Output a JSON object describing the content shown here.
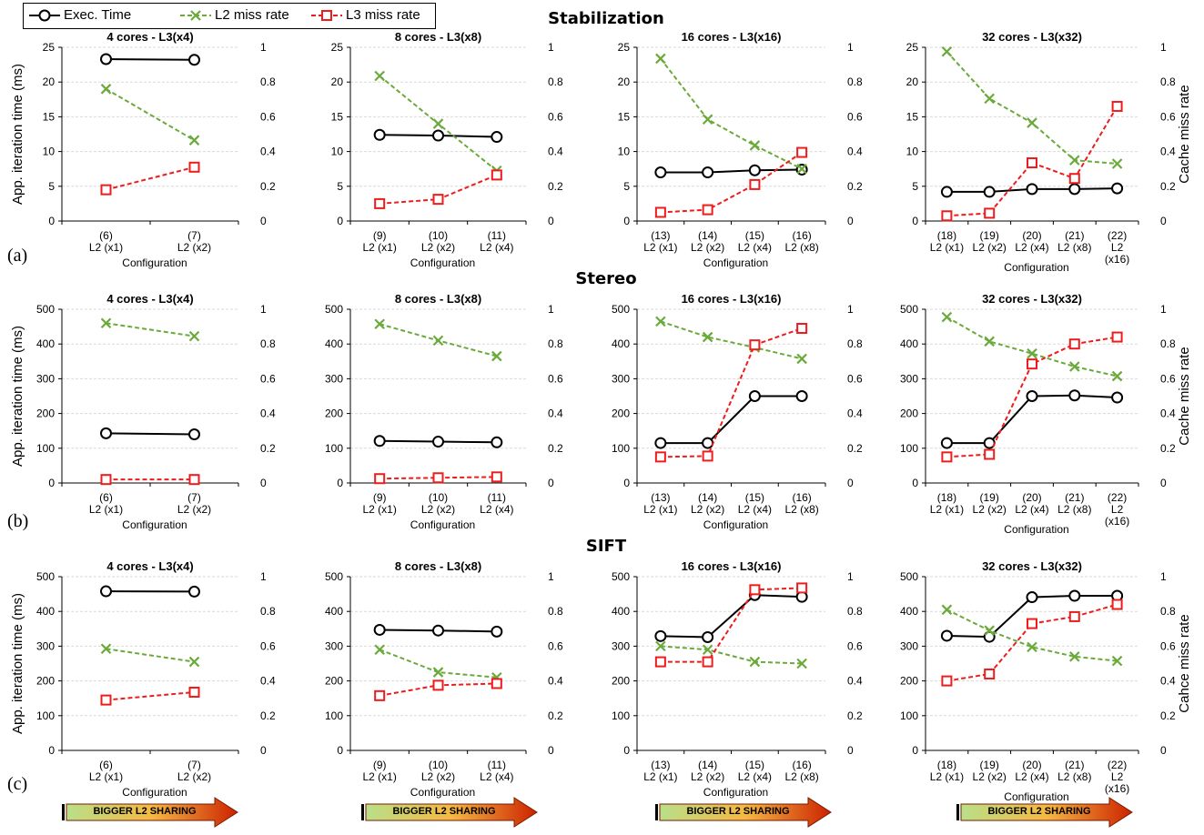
{
  "legend": {
    "exec_label": "Exec. Time",
    "l2_label": "L2 miss rate",
    "l3_label": "L3 miss rate"
  },
  "colors": {
    "exec": "#000000",
    "l2": "#6aaa3a",
    "l3": "#ee1c1c",
    "grid": "#d9d9d9",
    "arrow_start": "#b8e08a",
    "arrow_mid": "#f5b942",
    "arrow_end": "#cc2200"
  },
  "sections": [
    {
      "title": "Stabilization",
      "letter": "(a)"
    },
    {
      "title": "Stereo",
      "letter": "(b)"
    },
    {
      "title": "SIFT",
      "letter": "(c)"
    }
  ],
  "arrow_label": "BIGGER L2 SHARING",
  "chart_data": [
    {
      "type": "line",
      "section": "Stabilization",
      "title": "4 cores - L3(x4)",
      "xlabel": "Configuration",
      "ylabel": "App. iteration time (ms)",
      "y2label": "",
      "ylim": [
        0,
        25
      ],
      "y2lim": [
        0,
        1
      ],
      "yticks": [
        "0",
        "5",
        "10",
        "15",
        "20",
        "25"
      ],
      "y2ticks": [
        "0",
        "0.2",
        "0.4",
        "0.6",
        "0.8",
        "1"
      ],
      "grid": true,
      "categories": [
        [
          "(6)",
          "L2 (x1)"
        ],
        [
          "(7)",
          "L2 (x2)"
        ]
      ],
      "series": [
        {
          "name": "Exec. Time",
          "axis": "left",
          "values": [
            23.3,
            23.2
          ]
        },
        {
          "name": "L2 miss rate",
          "axis": "right",
          "values": [
            0.76,
            0.465
          ]
        },
        {
          "name": "L3 miss rate",
          "axis": "right",
          "values": [
            0.18,
            0.31
          ]
        }
      ]
    },
    {
      "type": "line",
      "section": "Stabilization",
      "title": "8 cores - L3(x8)",
      "xlabel": "Configuration",
      "ylabel": "",
      "y2label": "",
      "ylim": [
        0,
        25
      ],
      "y2lim": [
        0,
        1
      ],
      "yticks": [
        "0",
        "5",
        "10",
        "15",
        "20",
        "25"
      ],
      "y2ticks": [
        "0",
        "0.2",
        "0.4",
        "0.6",
        "0.8",
        "1"
      ],
      "grid": true,
      "categories": [
        [
          "(9)",
          "L2 (x1)"
        ],
        [
          "(10)",
          "L2 (x2)"
        ],
        [
          "(11)",
          "L2 (x4)"
        ]
      ],
      "series": [
        {
          "name": "Exec. Time",
          "axis": "left",
          "values": [
            12.4,
            12.3,
            12.1
          ]
        },
        {
          "name": "L2 miss rate",
          "axis": "right",
          "values": [
            0.835,
            0.56,
            0.29
          ]
        },
        {
          "name": "L3 miss rate",
          "axis": "right",
          "values": [
            0.1,
            0.125,
            0.265
          ]
        }
      ]
    },
    {
      "type": "line",
      "section": "Stabilization",
      "title": "16 cores - L3(x16)",
      "xlabel": "Configuration",
      "ylabel": "",
      "y2label": "",
      "ylim": [
        0,
        25
      ],
      "y2lim": [
        0,
        1
      ],
      "yticks": [
        "0",
        "5",
        "10",
        "15",
        "20",
        "25"
      ],
      "y2ticks": [
        "0",
        "0.2",
        "0.4",
        "0.6",
        "0.8",
        "1"
      ],
      "grid": true,
      "categories": [
        [
          "(13)",
          "L2 (x1)"
        ],
        [
          "(14)",
          "L2 (x2)"
        ],
        [
          "(15)",
          "L2 (x4)"
        ],
        [
          "(16)",
          "L2 (x8)"
        ]
      ],
      "series": [
        {
          "name": "Exec. Time",
          "axis": "left",
          "values": [
            7.0,
            7.0,
            7.3,
            7.4
          ]
        },
        {
          "name": "L2 miss rate",
          "axis": "right",
          "values": [
            0.935,
            0.585,
            0.435,
            0.3
          ]
        },
        {
          "name": "L3 miss rate",
          "axis": "right",
          "values": [
            0.05,
            0.065,
            0.21,
            0.395
          ]
        }
      ]
    },
    {
      "type": "line",
      "section": "Stabilization",
      "title": "32 cores - L3(x32)",
      "xlabel": "Configuration",
      "ylabel": "",
      "y2label": "Cache miss rate",
      "ylim": [
        0,
        25
      ],
      "y2lim": [
        0,
        1
      ],
      "yticks": [
        "0",
        "5",
        "10",
        "15",
        "20",
        "25"
      ],
      "y2ticks": [
        "0",
        "0.2",
        "0.4",
        "0.6",
        "0.8",
        "1"
      ],
      "grid": true,
      "categories": [
        [
          "(18)",
          "L2 (x1)"
        ],
        [
          "(19)",
          "L2 (x2)"
        ],
        [
          "(20)",
          "L2 (x4)"
        ],
        [
          "(21)",
          "L2 (x8)"
        ],
        [
          "(22)",
          "L2",
          "(x16)"
        ]
      ],
      "series": [
        {
          "name": "Exec. Time",
          "axis": "left",
          "values": [
            4.2,
            4.2,
            4.6,
            4.6,
            4.7
          ]
        },
        {
          "name": "L2 miss rate",
          "axis": "right",
          "values": [
            0.975,
            0.705,
            0.565,
            0.35,
            0.33
          ]
        },
        {
          "name": "L3 miss rate",
          "axis": "right",
          "values": [
            0.03,
            0.045,
            0.335,
            0.245,
            0.66
          ]
        }
      ]
    },
    {
      "type": "line",
      "section": "Stereo",
      "title": "4 cores - L3(x4)",
      "xlabel": "Configuration",
      "ylabel": "App. iteration time (ms)",
      "y2label": "",
      "ylim": [
        0,
        500
      ],
      "y2lim": [
        0,
        1
      ],
      "yticks": [
        "0",
        "100",
        "200",
        "300",
        "400",
        "500"
      ],
      "y2ticks": [
        "0",
        "0.2",
        "0.4",
        "0.6",
        "0.8",
        "1"
      ],
      "grid": true,
      "categories": [
        [
          "(6)",
          "L2 (x1)"
        ],
        [
          "(7)",
          "L2 (x2)"
        ]
      ],
      "series": [
        {
          "name": "Exec. Time",
          "axis": "left",
          "values": [
            143,
            140
          ]
        },
        {
          "name": "L2 miss rate",
          "axis": "right",
          "values": [
            0.92,
            0.845
          ]
        },
        {
          "name": "L3 miss rate",
          "axis": "right",
          "values": [
            0.02,
            0.02
          ]
        }
      ]
    },
    {
      "type": "line",
      "section": "Stereo",
      "title": "8 cores - L3(x8)",
      "xlabel": "Configuration",
      "ylabel": "",
      "y2label": "",
      "ylim": [
        0,
        500
      ],
      "y2lim": [
        0,
        1
      ],
      "yticks": [
        "0",
        "100",
        "200",
        "300",
        "400",
        "500"
      ],
      "y2ticks": [
        "0",
        "0.2",
        "0.4",
        "0.6",
        "0.8",
        "1"
      ],
      "grid": true,
      "categories": [
        [
          "(9)",
          "L2 (x1)"
        ],
        [
          "(10)",
          "L2 (x2)"
        ],
        [
          "(11)",
          "L2 (x4)"
        ]
      ],
      "series": [
        {
          "name": "Exec. Time",
          "axis": "left",
          "values": [
            121,
            119,
            117
          ]
        },
        {
          "name": "L2 miss rate",
          "axis": "right",
          "values": [
            0.915,
            0.82,
            0.73
          ]
        },
        {
          "name": "L3 miss rate",
          "axis": "right",
          "values": [
            0.025,
            0.03,
            0.035
          ]
        }
      ]
    },
    {
      "type": "line",
      "section": "Stereo",
      "title": "16 cores - L3(x16)",
      "xlabel": "Configuration",
      "ylabel": "",
      "y2label": "",
      "ylim": [
        0,
        500
      ],
      "y2lim": [
        0,
        1
      ],
      "yticks": [
        "0",
        "100",
        "200",
        "300",
        "400",
        "500"
      ],
      "y2ticks": [
        "0",
        "0.2",
        "0.4",
        "0.6",
        "0.8",
        "1"
      ],
      "grid": true,
      "categories": [
        [
          "(13)",
          "L2 (x1)"
        ],
        [
          "(14)",
          "L2 (x2)"
        ],
        [
          "(15)",
          "L2 (x4)"
        ],
        [
          "(16)",
          "L2 (x8)"
        ]
      ],
      "series": [
        {
          "name": "Exec. Time",
          "axis": "left",
          "values": [
            115,
            115,
            250,
            250
          ]
        },
        {
          "name": "L2 miss rate",
          "axis": "right",
          "values": [
            0.93,
            0.84,
            0.78,
            0.715
          ]
        },
        {
          "name": "L3 miss rate",
          "axis": "right",
          "values": [
            0.15,
            0.155,
            0.795,
            0.89
          ]
        }
      ]
    },
    {
      "type": "line",
      "section": "Stereo",
      "title": "32 cores - L3(x32)",
      "xlabel": "Configuration",
      "ylabel": "",
      "y2label": "Cache miss rate",
      "ylim": [
        0,
        500
      ],
      "y2lim": [
        0,
        1
      ],
      "yticks": [
        "0",
        "100",
        "200",
        "300",
        "400",
        "500"
      ],
      "y2ticks": [
        "0",
        "0.2",
        "0.4",
        "0.6",
        "0.8",
        "1"
      ],
      "grid": true,
      "categories": [
        [
          "(18)",
          "L2 (x1)"
        ],
        [
          "(19)",
          "L2 (x2)"
        ],
        [
          "(20)",
          "L2 (x4)"
        ],
        [
          "(21)",
          "L2 (x8)"
        ],
        [
          "(22)",
          "L2",
          "(x16)"
        ]
      ],
      "series": [
        {
          "name": "Exec. Time",
          "axis": "left",
          "values": [
            115,
            115,
            250,
            252,
            246
          ]
        },
        {
          "name": "L2 miss rate",
          "axis": "right",
          "values": [
            0.955,
            0.815,
            0.745,
            0.67,
            0.615
          ]
        },
        {
          "name": "L3 miss rate",
          "axis": "right",
          "values": [
            0.15,
            0.165,
            0.685,
            0.8,
            0.84
          ]
        }
      ]
    },
    {
      "type": "line",
      "section": "SIFT",
      "title": "4 cores - L3(x4)",
      "xlabel": "Configuration",
      "ylabel": "App. iteration time (ms)",
      "y2label": "",
      "ylim": [
        0,
        500
      ],
      "y2lim": [
        0,
        1
      ],
      "yticks": [
        "0",
        "100",
        "200",
        "300",
        "400",
        "500"
      ],
      "y2ticks": [
        "0",
        "0.2",
        "0.4",
        "0.6",
        "0.8",
        "1"
      ],
      "grid": true,
      "categories": [
        [
          "(6)",
          "L2 (x1)"
        ],
        [
          "(7)",
          "L2 (x2)"
        ]
      ],
      "series": [
        {
          "name": "Exec. Time",
          "axis": "left",
          "values": [
            458,
            457
          ]
        },
        {
          "name": "L2 miss rate",
          "axis": "right",
          "values": [
            0.585,
            0.51
          ]
        },
        {
          "name": "L3 miss rate",
          "axis": "right",
          "values": [
            0.29,
            0.335
          ]
        }
      ]
    },
    {
      "type": "line",
      "section": "SIFT",
      "title": "8 cores - L3(x8)",
      "xlabel": "Configuration",
      "ylabel": "",
      "y2label": "",
      "ylim": [
        0,
        500
      ],
      "y2lim": [
        0,
        1
      ],
      "yticks": [
        "0",
        "100",
        "200",
        "300",
        "400",
        "500"
      ],
      "y2ticks": [
        "0",
        "0.2",
        "0.4",
        "0.6",
        "0.8",
        "1"
      ],
      "grid": true,
      "categories": [
        [
          "(9)",
          "L2 (x1)"
        ],
        [
          "(10)",
          "L2 (x2)"
        ],
        [
          "(11)",
          "L2 (x4)"
        ]
      ],
      "series": [
        {
          "name": "Exec. Time",
          "axis": "left",
          "values": [
            347,
            345,
            342
          ]
        },
        {
          "name": "L2 miss rate",
          "axis": "right",
          "values": [
            0.58,
            0.45,
            0.42
          ]
        },
        {
          "name": "L3 miss rate",
          "axis": "right",
          "values": [
            0.315,
            0.375,
            0.385
          ]
        }
      ]
    },
    {
      "type": "line",
      "section": "SIFT",
      "title": "16 cores - L3(x16)",
      "xlabel": "Configuration",
      "ylabel": "",
      "y2label": "",
      "ylim": [
        0,
        500
      ],
      "y2lim": [
        0,
        1
      ],
      "yticks": [
        "0",
        "100",
        "200",
        "300",
        "400",
        "500"
      ],
      "y2ticks": [
        "0",
        "0.2",
        "0.4",
        "0.6",
        "0.8",
        "1"
      ],
      "grid": true,
      "categories": [
        [
          "(13)",
          "L2 (x1)"
        ],
        [
          "(14)",
          "L2 (x2)"
        ],
        [
          "(15)",
          "L2 (x4)"
        ],
        [
          "(16)",
          "L2 (x8)"
        ]
      ],
      "series": [
        {
          "name": "Exec. Time",
          "axis": "left",
          "values": [
            329,
            326,
            447,
            442
          ]
        },
        {
          "name": "L2 miss rate",
          "axis": "right",
          "values": [
            0.6,
            0.58,
            0.51,
            0.5
          ]
        },
        {
          "name": "L3 miss rate",
          "axis": "right",
          "values": [
            0.51,
            0.51,
            0.925,
            0.935
          ]
        }
      ]
    },
    {
      "type": "line",
      "section": "SIFT",
      "title": "32 cores - L3(x32)",
      "xlabel": "Configuration",
      "ylabel": "",
      "y2label": "Cahce miss rate",
      "ylim": [
        0,
        500
      ],
      "y2lim": [
        0,
        1
      ],
      "yticks": [
        "0",
        "100",
        "200",
        "300",
        "400",
        "500"
      ],
      "y2ticks": [
        "0",
        "0.2",
        "0.4",
        "0.6",
        "0.8",
        "1"
      ],
      "grid": true,
      "categories": [
        [
          "(18)",
          "L2 (x1)"
        ],
        [
          "(19)",
          "L2 (x2)"
        ],
        [
          "(20)",
          "L2 (x4)"
        ],
        [
          "(21)",
          "L2 (x8)"
        ],
        [
          "(22)",
          "L2",
          "(x16)"
        ]
      ],
      "series": [
        {
          "name": "Exec. Time",
          "axis": "left",
          "values": [
            330,
            327,
            441,
            445,
            445
          ]
        },
        {
          "name": "L2 miss rate",
          "axis": "right",
          "values": [
            0.81,
            0.69,
            0.595,
            0.54,
            0.515
          ]
        },
        {
          "name": "L3 miss rate",
          "axis": "right",
          "values": [
            0.4,
            0.44,
            0.73,
            0.77,
            0.84
          ]
        }
      ]
    }
  ]
}
